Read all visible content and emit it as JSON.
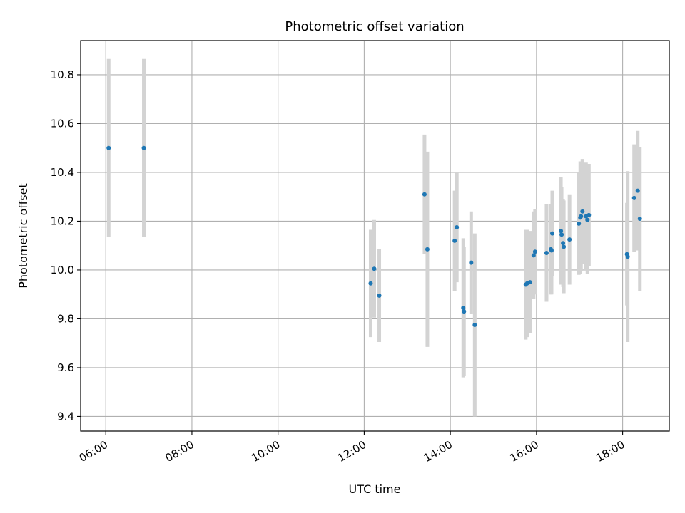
{
  "chart_data": {
    "type": "scatter",
    "title": "Photometric offset variation",
    "xlabel": "UTC time",
    "ylabel": "Photometric offset",
    "xlim": [
      "05:25",
      "19:05"
    ],
    "ylim": [
      9.34,
      10.94
    ],
    "x_ticks": [
      "06:00",
      "08:00",
      "10:00",
      "12:00",
      "14:00",
      "16:00",
      "18:00"
    ],
    "y_ticks": [
      "9.4",
      "9.6",
      "9.8",
      "10.0",
      "10.2",
      "10.4",
      "10.6",
      "10.8"
    ],
    "grid": true,
    "point_color": "#1f77b4",
    "errorbar_color": "#d3d3d3",
    "points": [
      {
        "x": "06:04",
        "y": 10.5,
        "err": 0.365
      },
      {
        "x": "06:53",
        "y": 10.5,
        "err": 0.365
      },
      {
        "x": "12:09",
        "y": 9.945,
        "err": 0.22
      },
      {
        "x": "12:14",
        "y": 10.005,
        "err": 0.2
      },
      {
        "x": "12:21",
        "y": 9.895,
        "err": 0.19
      },
      {
        "x": "13:24",
        "y": 10.31,
        "err": 0.245
      },
      {
        "x": "13:28",
        "y": 10.085,
        "err": 0.4
      },
      {
        "x": "14:06",
        "y": 10.12,
        "err": 0.205
      },
      {
        "x": "14:09",
        "y": 10.175,
        "err": 0.225
      },
      {
        "x": "14:18",
        "y": 9.845,
        "err": 0.285
      },
      {
        "x": "14:19",
        "y": 9.83,
        "err": 0.265
      },
      {
        "x": "14:29",
        "y": 10.03,
        "err": 0.21
      },
      {
        "x": "14:34",
        "y": 9.775,
        "err": 0.375
      },
      {
        "x": "15:45",
        "y": 9.94,
        "err": 0.225
      },
      {
        "x": "15:47",
        "y": 9.945,
        "err": 0.22
      },
      {
        "x": "15:51",
        "y": 9.95,
        "err": 0.21
      },
      {
        "x": "15:56",
        "y": 10.06,
        "err": 0.18
      },
      {
        "x": "15:58",
        "y": 10.075,
        "err": 0.175
      },
      {
        "x": "16:14",
        "y": 10.07,
        "err": 0.2
      },
      {
        "x": "16:20",
        "y": 10.085,
        "err": 0.185
      },
      {
        "x": "16:21",
        "y": 10.08,
        "err": 0.18
      },
      {
        "x": "16:22",
        "y": 10.15,
        "err": 0.175
      },
      {
        "x": "16:34",
        "y": 10.16,
        "err": 0.22
      },
      {
        "x": "16:35",
        "y": 10.145,
        "err": 0.195
      },
      {
        "x": "16:37",
        "y": 10.11,
        "err": 0.18
      },
      {
        "x": "16:38",
        "y": 10.095,
        "err": 0.19
      },
      {
        "x": "16:46",
        "y": 10.125,
        "err": 0.185
      },
      {
        "x": "16:59",
        "y": 10.19,
        "err": 0.21
      },
      {
        "x": "17:01",
        "y": 10.215,
        "err": 0.23
      },
      {
        "x": "17:02",
        "y": 10.22,
        "err": 0.225
      },
      {
        "x": "17:04",
        "y": 10.24,
        "err": 0.215
      },
      {
        "x": "17:09",
        "y": 10.22,
        "err": 0.22
      },
      {
        "x": "17:11",
        "y": 10.205,
        "err": 0.22
      },
      {
        "x": "17:13",
        "y": 10.225,
        "err": 0.21
      },
      {
        "x": "18:06",
        "y": 10.065,
        "err": 0.21
      },
      {
        "x": "18:07",
        "y": 10.055,
        "err": 0.35
      },
      {
        "x": "18:16",
        "y": 10.295,
        "err": 0.22
      },
      {
        "x": "18:21",
        "y": 10.325,
        "err": 0.245
      },
      {
        "x": "18:24",
        "y": 10.21,
        "err": 0.295
      }
    ]
  }
}
